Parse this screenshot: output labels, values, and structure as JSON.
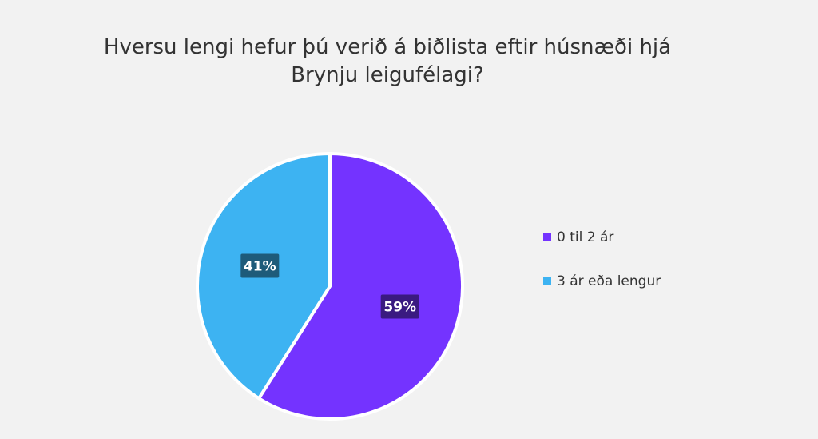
{
  "chart_data": {
    "type": "pie",
    "title": "Hversu lengi hefur þú verið á biðlista eftir húsnæði hjá Brynju leigufélagi?",
    "categories": [
      "0 til 2 ár",
      "3 ár eða lengur"
    ],
    "values": [
      59,
      41
    ],
    "value_labels": [
      "59%",
      "41%"
    ],
    "colors": [
      "#7433ff",
      "#3db3f2"
    ],
    "legend": "right"
  }
}
